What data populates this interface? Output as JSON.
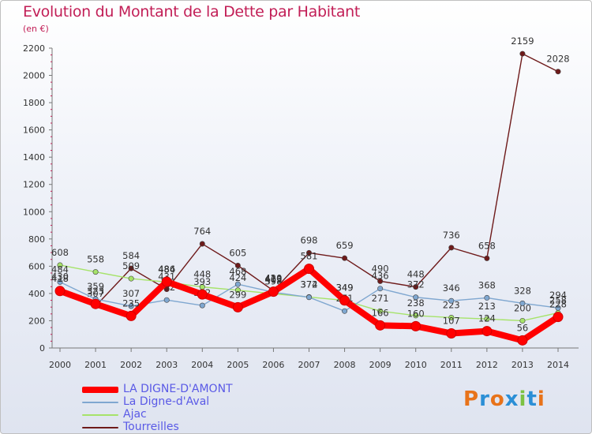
{
  "title": "Evolution du Montant de la Dette par Habitant",
  "subtitle": "(en €)",
  "brand": {
    "letters": [
      "P",
      "r",
      "o",
      "x",
      "i",
      "t",
      "i"
    ],
    "colors": [
      "#e8731a",
      "#2b8fd6",
      "#e8731a",
      "#2b8fd6",
      "#7cc242",
      "#2b8fd6",
      "#e8731a"
    ]
  },
  "chart_data": {
    "type": "line",
    "x": [
      2000,
      2001,
      2002,
      2003,
      2004,
      2005,
      2006,
      2007,
      2008,
      2009,
      2010,
      2011,
      2012,
      2013,
      2014
    ],
    "ylim": [
      0,
      2200
    ],
    "yticks": [
      0,
      200,
      400,
      600,
      800,
      1000,
      1200,
      1400,
      1600,
      1800,
      2000,
      2200
    ],
    "grid": false,
    "legend_position": "bottom-left",
    "series": [
      {
        "name": "Tourreilles",
        "color": "#6e1a1a",
        "values": [
          430,
          307,
          584,
          431,
          764,
          605,
          420,
          698,
          659,
          490,
          448,
          736,
          658,
          2159,
          2028
        ],
        "labels": [
          "430",
          "307",
          "584",
          "431",
          "764",
          "605",
          "420",
          "698",
          "659",
          "490",
          "448",
          "736",
          "658",
          "2159",
          "2028"
        ]
      },
      {
        "name": "Ajac",
        "color": "#a6e36a",
        "values": [
          608,
          558,
          509,
          484,
          448,
          424,
          398,
          374,
          349,
          271,
          238,
          223,
          213,
          200,
          258
        ],
        "labels": [
          "608",
          "558",
          "509",
          "484",
          "448",
          "424",
          "398",
          "374",
          "349",
          "271",
          "238",
          "223",
          "213",
          "200",
          "258"
        ]
      },
      {
        "name": "La Digne-d'Aval",
        "color": "#7fa7d0",
        "values": [
          484,
          359,
          307,
          352,
          312,
          468,
          409,
          372,
          271,
          436,
          372,
          346,
          368,
          328,
          294
        ],
        "labels": [
          "484",
          "359",
          "307",
          "352",
          "312",
          "468",
          "409",
          "372",
          "271",
          "436",
          "372",
          "346",
          "368",
          "328",
          "294"
        ]
      },
      {
        "name": "LA DIGNE-D'AMONT",
        "color": "#ff0000",
        "values": [
          418,
          323,
          235,
          486,
          393,
          299,
          413,
          581,
          349,
          166,
          160,
          107,
          124,
          56,
          228
        ],
        "labels": [
          "418",
          "323",
          "235",
          "486",
          "393",
          "299",
          "413",
          "581",
          "349",
          "166",
          "160",
          "107",
          "124",
          "56",
          "228"
        ]
      }
    ],
    "legend_order": [
      "LA DIGNE-D'AMONT",
      "La Digne-d'Aval",
      "Ajac",
      "Tourreilles"
    ]
  }
}
